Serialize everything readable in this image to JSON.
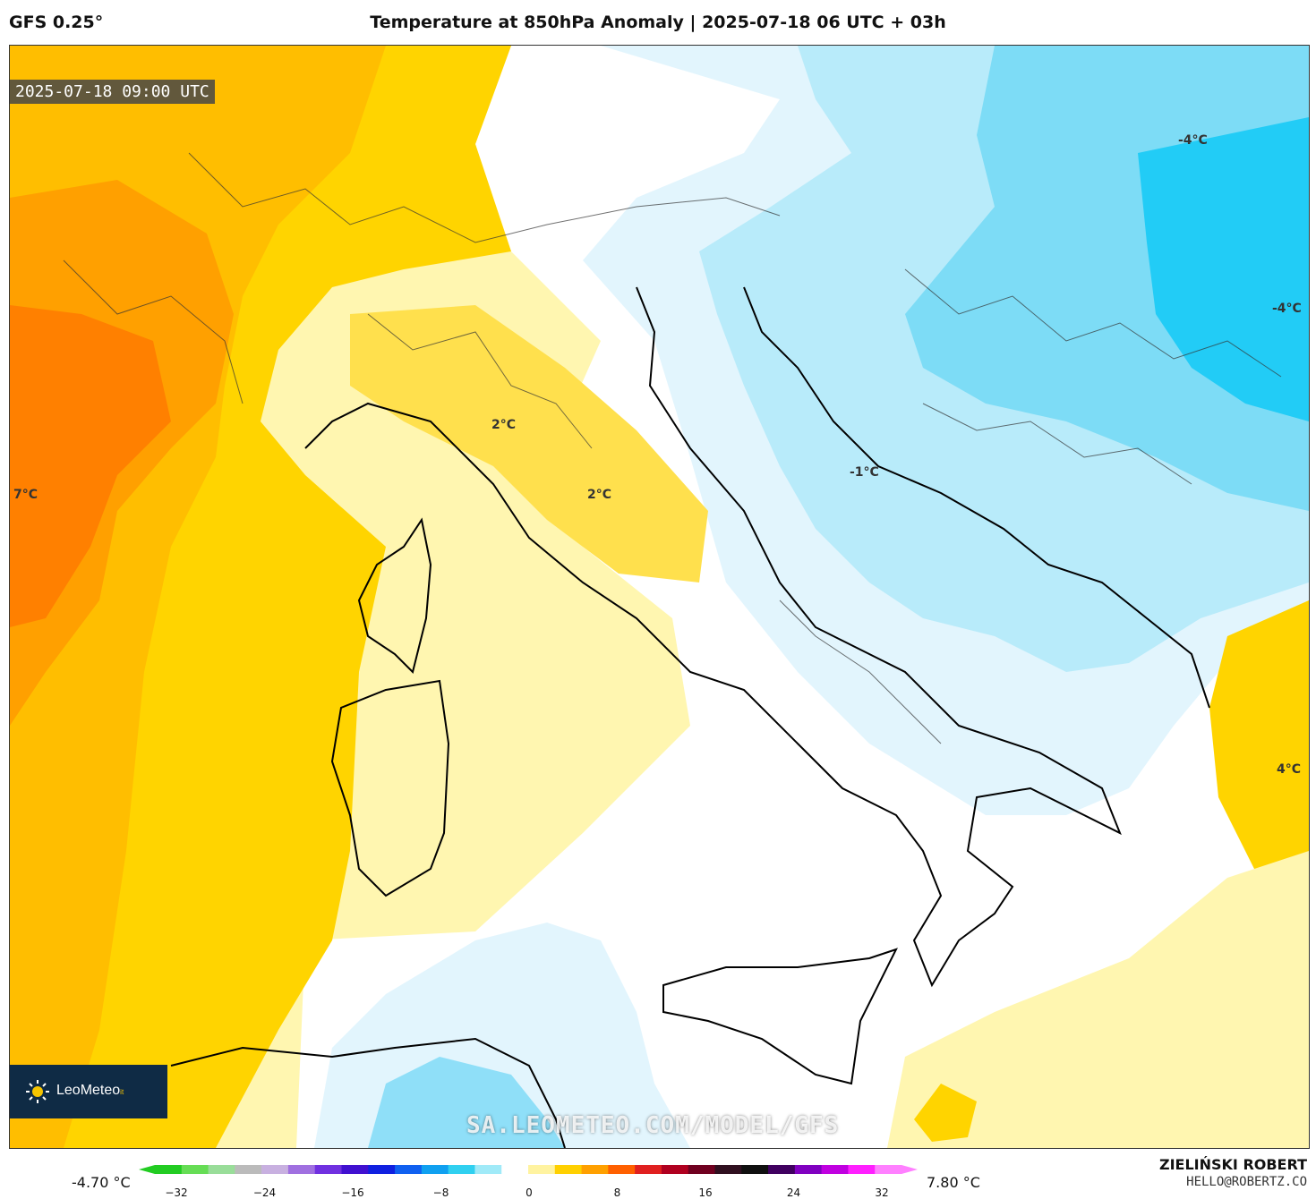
{
  "header": {
    "model": "GFS 0.25°",
    "title": "Temperature at 850hPa Anomaly | 2025-07-18 06 UTC + 03h"
  },
  "map": {
    "valid_time": "2025-07-18 09:00 UTC",
    "labels": [
      {
        "id": "france",
        "text": "7°C"
      },
      {
        "id": "tuscany",
        "text": "2°C"
      },
      {
        "id": "umbria",
        "text": "2°C"
      },
      {
        "id": "adriatic",
        "text": "-1°C"
      },
      {
        "id": "austria",
        "text": "-4°C"
      },
      {
        "id": "hungary",
        "text": "-4°C"
      },
      {
        "id": "greece",
        "text": "4°C"
      }
    ],
    "logo_text": "LeoMeteo",
    "logo_suffix": "it",
    "watermark": "SA.LEOMETEO.COM/MODEL/GFS"
  },
  "colorbar": {
    "min_label": "-4.70 °C",
    "max_label": "7.80 °C",
    "ticks": [
      "−32",
      "−24",
      "−16",
      "−8",
      "0",
      "8",
      "16",
      "24",
      "32"
    ],
    "colors": [
      "#22cc22",
      "#66dd55",
      "#99dd99",
      "#bbbbbb",
      "#c8b0e0",
      "#a070e0",
      "#7030e0",
      "#4010d0",
      "#1020e0",
      "#1060f0",
      "#10a0f0",
      "#30d0f0",
      "#a0eaf8",
      "#ffffff",
      "#fff3a0",
      "#ffd000",
      "#ffa000",
      "#ff6000",
      "#e02020",
      "#b00020",
      "#700020",
      "#301020",
      "#101010",
      "#400060",
      "#8000c0",
      "#c000e0",
      "#ff20ff",
      "#ff80ff"
    ]
  },
  "credits": {
    "author": "ZIELIŃSKI ROBERT",
    "email": "HELLO@ROBERTZ.CO"
  }
}
